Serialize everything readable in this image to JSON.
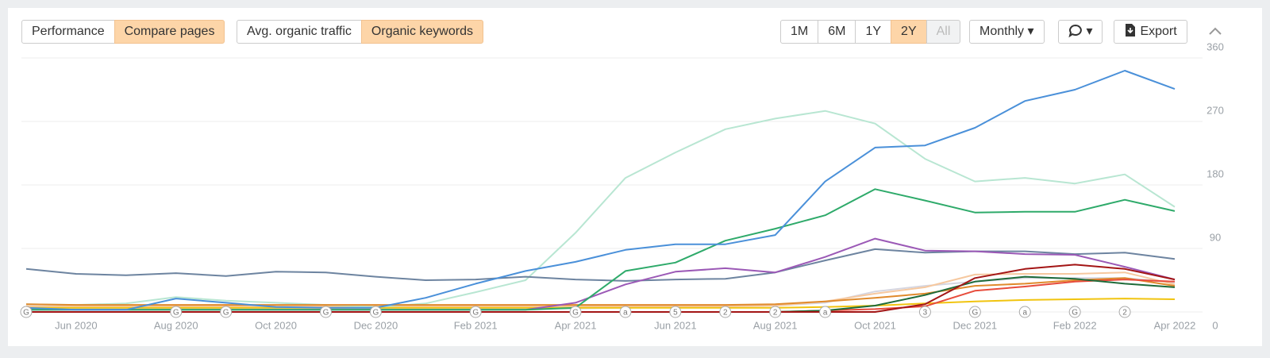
{
  "toolbar": {
    "view_tabs": [
      "Performance",
      "Compare pages"
    ],
    "metric_tabs": [
      "Avg. organic traffic",
      "Organic keywords"
    ],
    "ranges": [
      "1M",
      "6M",
      "1Y",
      "2Y",
      "All"
    ],
    "interval": "Monthly",
    "export": "Export"
  },
  "chart_data": {
    "type": "line",
    "grid": true,
    "categories": [
      null,
      "Jun 2020",
      null,
      "Aug 2020",
      null,
      "Oct 2020",
      null,
      "Dec 2020",
      null,
      "Feb 2021",
      null,
      "Apr 2021",
      null,
      "Jun 2021",
      null,
      "Aug 2021",
      null,
      "Oct 2021",
      null,
      "Dec 2021",
      null,
      "Feb 2022",
      null,
      "Apr 2022"
    ],
    "ylim": [
      0,
      360
    ],
    "yticks": [
      0,
      90,
      180,
      270,
      360
    ],
    "annotations": [
      {
        "index": 0,
        "label": "G"
      },
      {
        "index": 3,
        "label": "G"
      },
      {
        "index": 4,
        "label": "G"
      },
      {
        "index": 6,
        "label": "G"
      },
      {
        "index": 7,
        "label": "G"
      },
      {
        "index": 9,
        "label": "G"
      },
      {
        "index": 11,
        "label": "G"
      },
      {
        "index": 12,
        "label": "a"
      },
      {
        "index": 13,
        "label": "5"
      },
      {
        "index": 14,
        "label": "2"
      },
      {
        "index": 15,
        "label": "2"
      },
      {
        "index": 16,
        "label": "a"
      },
      {
        "index": 18,
        "label": "3"
      },
      {
        "index": 19,
        "label": "G"
      },
      {
        "index": 20,
        "label": "a"
      },
      {
        "index": 21,
        "label": "G"
      },
      {
        "index": 22,
        "label": "2"
      }
    ],
    "series": [
      {
        "color": "#d6d6e0",
        "values": [
          5,
          5,
          5,
          5,
          5,
          5,
          5,
          5,
          5,
          5,
          5,
          5,
          6,
          7,
          8,
          9,
          13,
          29,
          37,
          43,
          48,
          48,
          48,
          42
        ]
      },
      {
        "color": "#f6c89f",
        "values": [
          8,
          8,
          8,
          8,
          8,
          8,
          8,
          8,
          8,
          8,
          8,
          8,
          8,
          8,
          8,
          9,
          15,
          26,
          35,
          53,
          54,
          54,
          56,
          39
        ]
      },
      {
        "color": "#f1c40f",
        "values": [
          6,
          6,
          6,
          6,
          6,
          6,
          6,
          6,
          6,
          6,
          6,
          6,
          6,
          6,
          6,
          6,
          7,
          9,
          12,
          15,
          17,
          18,
          19,
          18
        ]
      },
      {
        "color": "#b8e6d2",
        "values": [
          11,
          10,
          12,
          21,
          16,
          13,
          10,
          7,
          12,
          28,
          45,
          112,
          190,
          226,
          259,
          274,
          285,
          267,
          217,
          185,
          190,
          182,
          195,
          149
        ]
      },
      {
        "color": "#6d84a0",
        "values": [
          61,
          54,
          52,
          55,
          51,
          57,
          56,
          50,
          45,
          46,
          50,
          46,
          44,
          46,
          47,
          56,
          73,
          89,
          84,
          86,
          86,
          82,
          84,
          75
        ]
      },
      {
        "color": "#e08a2c",
        "values": [
          11,
          10,
          10,
          10,
          10,
          10,
          10,
          10,
          10,
          10,
          10,
          10,
          10,
          10,
          10,
          11,
          15,
          20,
          26,
          37,
          40,
          45,
          48,
          37
        ]
      },
      {
        "color": "#9b59b6",
        "values": [
          3,
          3,
          3,
          3,
          3,
          3,
          3,
          3,
          3,
          3,
          3,
          13,
          39,
          57,
          62,
          56,
          78,
          104,
          87,
          86,
          82,
          81,
          64,
          46
        ]
      },
      {
        "color": "#2eaa6a",
        "values": [
          3,
          3,
          3,
          3,
          3,
          3,
          3,
          3,
          3,
          3,
          3,
          6,
          58,
          70,
          101,
          118,
          137,
          174,
          158,
          141,
          142,
          142,
          159,
          143
        ]
      },
      {
        "color": "#e74c3c",
        "values": [
          0,
          0,
          0,
          0,
          0,
          0,
          0,
          0,
          0,
          0,
          0,
          0,
          0,
          0,
          0,
          0,
          2,
          4,
          8,
          30,
          36,
          43,
          46,
          43
        ]
      },
      {
        "color": "#1e6b3a",
        "values": [
          0,
          0,
          0,
          0,
          0,
          0,
          0,
          0,
          0,
          0,
          0,
          0,
          0,
          0,
          0,
          0,
          2,
          9,
          24,
          43,
          50,
          47,
          40,
          35
        ]
      },
      {
        "color": "#a31515",
        "values": [
          0,
          0,
          0,
          0,
          0,
          0,
          0,
          0,
          0,
          0,
          0,
          0,
          0,
          0,
          0,
          0,
          0,
          0,
          11,
          48,
          61,
          67,
          61,
          46
        ]
      },
      {
        "color": "#4a90d9",
        "values": [
          6,
          3,
          3,
          19,
          13,
          7,
          6,
          6,
          20,
          40,
          58,
          71,
          88,
          96,
          96,
          109,
          185,
          233,
          236,
          261,
          299,
          315,
          342,
          316
        ]
      }
    ]
  }
}
